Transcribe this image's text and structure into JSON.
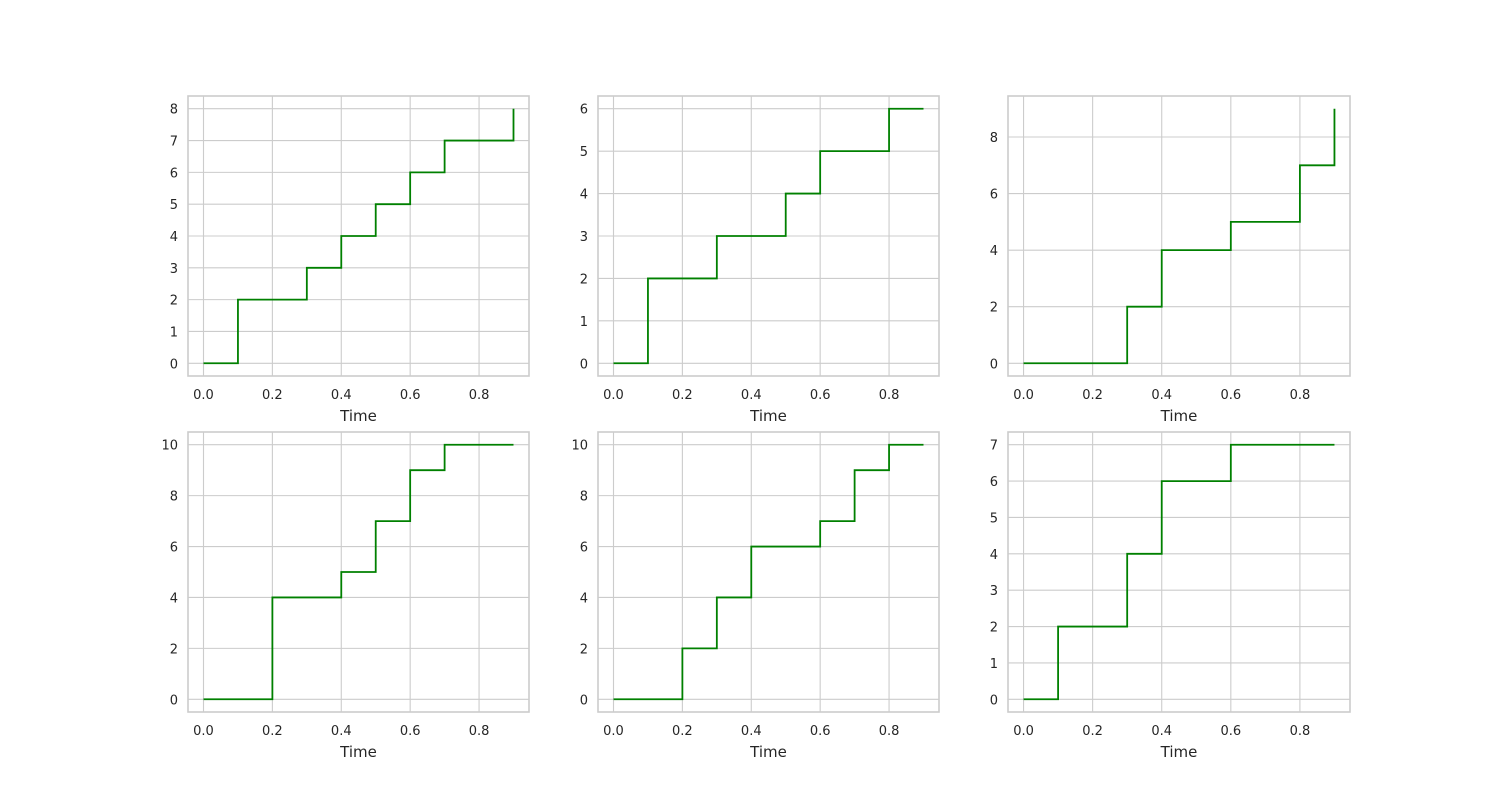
{
  "colors": {
    "line": "#008000",
    "grid": "#cccccc",
    "spine": "#cccccc",
    "background": "#ffffff",
    "text": "#262626"
  },
  "chart_data": [
    {
      "type": "line",
      "drawstyle": "steps-post",
      "xlabel": "Time",
      "xlim": [
        -0.045,
        0.945
      ],
      "ylim": [
        -0.4,
        8.4
      ],
      "xticks": [
        0.0,
        0.2,
        0.4,
        0.6,
        0.8
      ],
      "xtick_labels": [
        "0.0",
        "0.2",
        "0.4",
        "0.6",
        "0.8"
      ],
      "yticks": [
        0,
        1,
        2,
        3,
        4,
        5,
        6,
        7,
        8
      ],
      "ytick_labels": [
        "0",
        "1",
        "2",
        "3",
        "4",
        "5",
        "6",
        "7",
        "8"
      ],
      "grid": true,
      "x": [
        0.0,
        0.1,
        0.2,
        0.3,
        0.4,
        0.5,
        0.6,
        0.7,
        0.8,
        0.9
      ],
      "values": [
        0,
        2,
        2,
        3,
        4,
        5,
        6,
        7,
        7,
        8
      ]
    },
    {
      "type": "line",
      "drawstyle": "steps-post",
      "xlabel": "Time",
      "xlim": [
        -0.045,
        0.945
      ],
      "ylim": [
        -0.3,
        6.3
      ],
      "xticks": [
        0.0,
        0.2,
        0.4,
        0.6,
        0.8
      ],
      "xtick_labels": [
        "0.0",
        "0.2",
        "0.4",
        "0.6",
        "0.8"
      ],
      "yticks": [
        0,
        1,
        2,
        3,
        4,
        5,
        6
      ],
      "ytick_labels": [
        "0",
        "1",
        "2",
        "3",
        "4",
        "5",
        "6"
      ],
      "grid": true,
      "x": [
        0.0,
        0.1,
        0.2,
        0.3,
        0.4,
        0.5,
        0.6,
        0.7,
        0.8,
        0.9
      ],
      "values": [
        0,
        2,
        2,
        3,
        3,
        4,
        5,
        5,
        6,
        6
      ]
    },
    {
      "type": "line",
      "drawstyle": "steps-post",
      "xlabel": "Time",
      "xlim": [
        -0.045,
        0.945
      ],
      "ylim": [
        -0.45,
        9.45
      ],
      "xticks": [
        0.0,
        0.2,
        0.4,
        0.6,
        0.8
      ],
      "xtick_labels": [
        "0.0",
        "0.2",
        "0.4",
        "0.6",
        "0.8"
      ],
      "yticks": [
        0,
        2,
        4,
        6,
        8
      ],
      "ytick_labels": [
        "0",
        "2",
        "4",
        "6",
        "8"
      ],
      "grid": true,
      "x": [
        0.0,
        0.1,
        0.2,
        0.3,
        0.4,
        0.5,
        0.6,
        0.7,
        0.8,
        0.9
      ],
      "values": [
        0,
        0,
        0,
        2,
        4,
        4,
        5,
        5,
        7,
        9
      ]
    },
    {
      "type": "line",
      "drawstyle": "steps-post",
      "xlabel": "Time",
      "xlim": [
        -0.045,
        0.945
      ],
      "ylim": [
        -0.5,
        10.5
      ],
      "xticks": [
        0.0,
        0.2,
        0.4,
        0.6,
        0.8
      ],
      "xtick_labels": [
        "0.0",
        "0.2",
        "0.4",
        "0.6",
        "0.8"
      ],
      "yticks": [
        0,
        2,
        4,
        6,
        8,
        10
      ],
      "ytick_labels": [
        "0",
        "2",
        "4",
        "6",
        "8",
        "10"
      ],
      "grid": true,
      "x": [
        0.0,
        0.1,
        0.2,
        0.3,
        0.4,
        0.5,
        0.6,
        0.7,
        0.8,
        0.9
      ],
      "values": [
        0,
        0,
        4,
        4,
        5,
        7,
        9,
        10,
        10,
        10
      ]
    },
    {
      "type": "line",
      "drawstyle": "steps-post",
      "xlabel": "Time",
      "xlim": [
        -0.045,
        0.945
      ],
      "ylim": [
        -0.5,
        10.5
      ],
      "xticks": [
        0.0,
        0.2,
        0.4,
        0.6,
        0.8
      ],
      "xtick_labels": [
        "0.0",
        "0.2",
        "0.4",
        "0.6",
        "0.8"
      ],
      "yticks": [
        0,
        2,
        4,
        6,
        8,
        10
      ],
      "ytick_labels": [
        "0",
        "2",
        "4",
        "6",
        "8",
        "10"
      ],
      "grid": true,
      "x": [
        0.0,
        0.1,
        0.2,
        0.3,
        0.4,
        0.5,
        0.6,
        0.7,
        0.8,
        0.9
      ],
      "values": [
        0,
        0,
        2,
        4,
        6,
        6,
        7,
        9,
        10,
        10
      ]
    },
    {
      "type": "line",
      "drawstyle": "steps-post",
      "xlabel": "Time",
      "xlim": [
        -0.045,
        0.945
      ],
      "ylim": [
        -0.35,
        7.35
      ],
      "xticks": [
        0.0,
        0.2,
        0.4,
        0.6,
        0.8
      ],
      "xtick_labels": [
        "0.0",
        "0.2",
        "0.4",
        "0.6",
        "0.8"
      ],
      "yticks": [
        0,
        1,
        2,
        3,
        4,
        5,
        6,
        7
      ],
      "ytick_labels": [
        "0",
        "1",
        "2",
        "3",
        "4",
        "5",
        "6",
        "7"
      ],
      "grid": true,
      "x": [
        0.0,
        0.1,
        0.2,
        0.3,
        0.4,
        0.5,
        0.6,
        0.7,
        0.8,
        0.9
      ],
      "values": [
        0,
        2,
        2,
        4,
        6,
        6,
        7,
        7,
        7,
        7
      ]
    }
  ]
}
